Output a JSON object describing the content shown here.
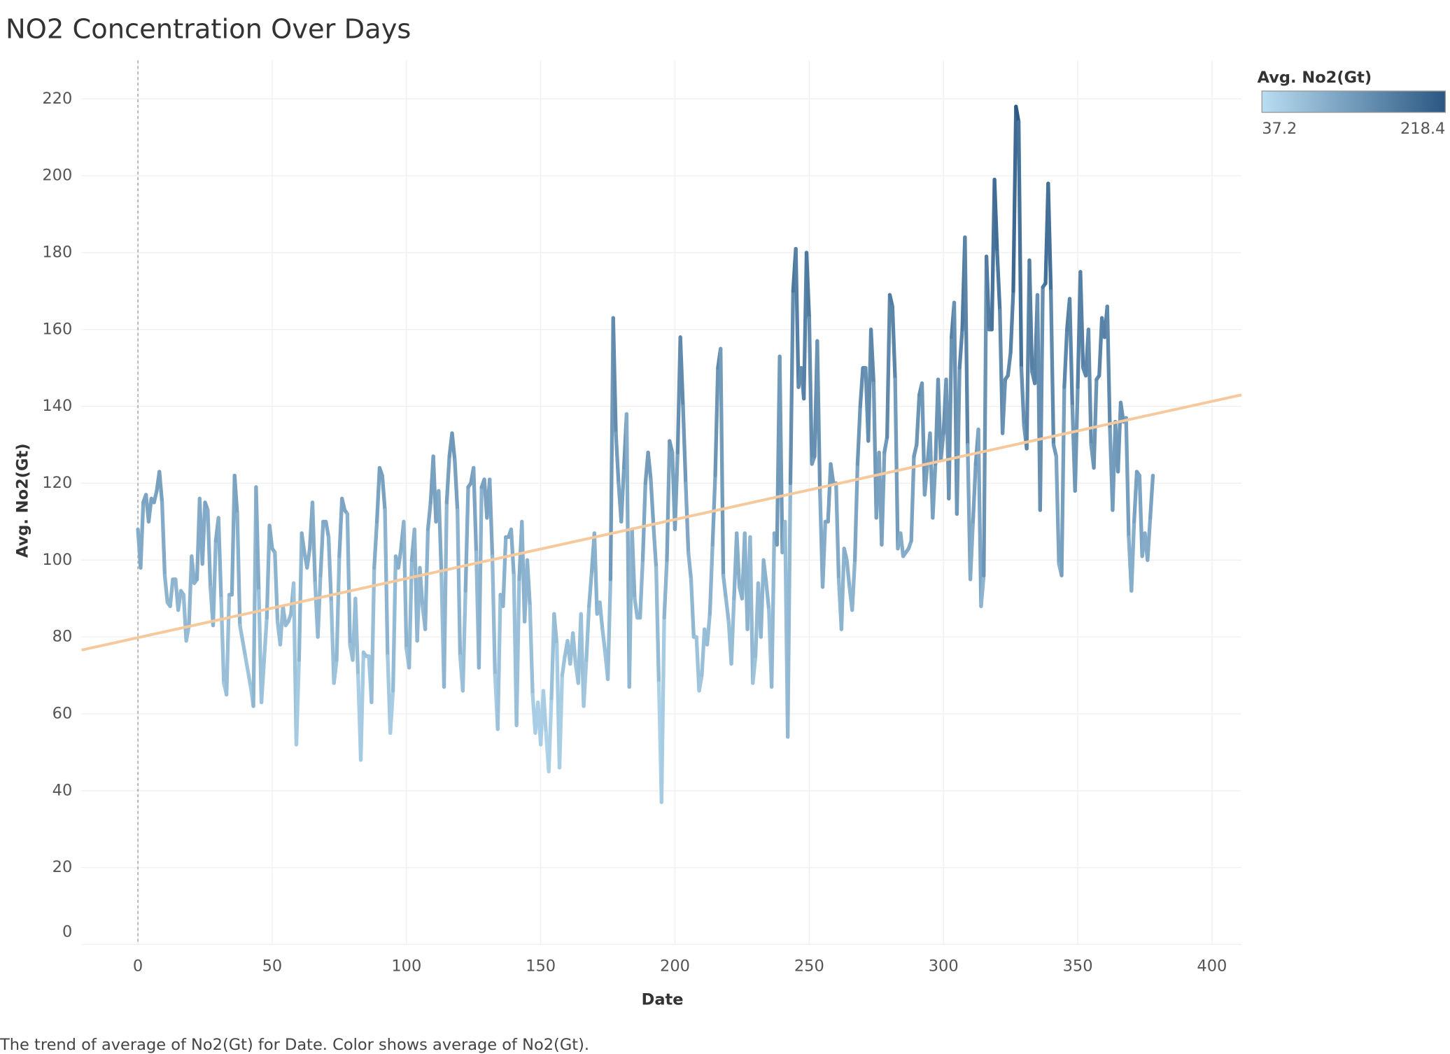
{
  "chart_data": {
    "type": "line",
    "title": "NO2 Concentration Over Days",
    "x_label": "Date",
    "y_label": "Avg. No2(Gt)",
    "caption": "The trend of average of No2(Gt) for Date.  Color shows average of No2(Gt).",
    "xlim": [
      -21,
      411
    ],
    "ylim": [
      0,
      230
    ],
    "xticks": [
      0,
      50,
      100,
      150,
      200,
      250,
      300,
      350,
      400
    ],
    "yticks": [
      0,
      20,
      40,
      60,
      80,
      100,
      120,
      140,
      160,
      180,
      200,
      220
    ],
    "grid": true,
    "color_legend": {
      "title": "Avg. No2(Gt)",
      "min": 37.2,
      "max": 218.4,
      "colors": [
        "#b9ddf1",
        "#2a5783"
      ],
      "position": "top-right"
    },
    "trendline": {
      "x": [
        -21,
        411
      ],
      "values": [
        76.6,
        143.0
      ],
      "color": "#f6c99c"
    },
    "x": [
      0,
      1,
      2,
      3,
      4,
      5,
      6,
      7,
      8,
      9,
      10,
      11,
      12,
      13,
      14,
      15,
      16,
      17,
      18,
      19,
      20,
      21,
      22,
      23,
      24,
      25,
      26,
      27,
      28,
      29,
      30,
      31,
      32,
      33,
      34,
      35,
      36,
      37,
      38,
      40,
      42,
      43,
      44,
      45,
      46,
      48,
      49,
      50,
      51,
      52,
      53,
      54,
      55,
      56,
      57,
      58,
      59,
      60,
      61,
      62,
      63,
      64,
      65,
      66,
      67,
      68,
      69,
      70,
      71,
      72,
      73,
      74,
      75,
      76,
      77,
      78,
      79,
      80,
      81,
      82,
      83,
      84,
      85,
      86,
      87,
      88,
      89,
      90,
      91,
      92,
      93,
      94,
      95,
      96,
      97,
      98,
      99,
      100,
      101,
      102,
      103,
      104,
      105,
      106,
      107,
      108,
      109,
      110,
      111,
      112,
      113,
      114,
      115,
      116,
      117,
      118,
      119,
      120,
      121,
      122,
      123,
      124,
      125,
      126,
      127,
      128,
      129,
      130,
      131,
      132,
      133,
      134,
      135,
      136,
      137,
      138,
      139,
      140,
      141,
      142,
      143,
      144,
      145,
      146,
      147,
      148,
      149,
      150,
      151,
      152,
      153,
      154,
      155,
      156,
      157,
      158,
      159,
      160,
      161,
      162,
      163,
      164,
      165,
      166,
      167,
      168,
      169,
      170,
      171,
      172,
      173,
      174,
      175,
      176,
      177,
      178,
      179,
      180,
      181,
      182,
      183,
      184,
      185,
      186,
      187,
      188,
      189,
      190,
      191,
      192,
      193,
      194,
      195,
      196,
      197,
      198,
      199,
      200,
      201,
      202,
      203,
      204,
      205,
      206,
      207,
      208,
      209,
      210,
      211,
      212,
      213,
      214,
      215,
      216,
      217,
      218,
      219,
      220,
      221,
      222,
      223,
      224,
      225,
      226,
      227,
      228,
      229,
      230,
      231,
      232,
      233,
      234,
      235,
      236,
      237,
      238,
      239,
      240,
      241,
      242,
      243,
      244,
      245,
      246,
      247,
      248,
      249,
      250,
      251,
      252,
      253,
      254,
      255,
      256,
      257,
      258,
      259,
      260,
      261,
      262,
      263,
      264,
      265,
      266,
      267,
      268,
      269,
      270,
      271,
      272,
      273,
      274,
      275,
      276,
      277,
      278,
      279,
      280,
      281,
      282,
      283,
      284,
      285,
      286,
      287,
      288,
      289,
      290,
      291,
      292,
      293,
      294,
      295,
      296,
      297,
      298,
      299,
      300,
      301,
      302,
      303,
      304,
      305,
      306,
      307,
      308,
      309,
      310,
      311,
      312,
      313,
      314,
      315,
      316,
      317,
      318,
      319,
      320,
      321,
      322,
      323,
      324,
      325,
      326,
      327,
      328,
      329,
      330,
      331,
      332,
      333,
      334,
      335,
      336,
      337,
      338,
      339,
      340,
      341,
      342,
      343,
      344,
      345,
      346,
      347,
      348,
      349,
      350,
      351,
      352,
      353,
      354,
      355,
      356,
      357,
      358,
      359,
      360,
      361,
      362,
      363,
      364,
      365,
      366,
      367,
      368,
      369,
      370,
      371,
      372,
      373,
      374,
      375,
      376,
      377,
      378
    ],
    "values": [
      108,
      98,
      115,
      117,
      110,
      116,
      115,
      118,
      123,
      115,
      96,
      89,
      88,
      95,
      95,
      87,
      92,
      91,
      79,
      83,
      101,
      94,
      95,
      116,
      99,
      115,
      113,
      93,
      83,
      105,
      111,
      90,
      68,
      65,
      91,
      91,
      122,
      112,
      83,
      75,
      67,
      62,
      119,
      92,
      63,
      85,
      109,
      103,
      102,
      84,
      78,
      88,
      83,
      84,
      86,
      94,
      52,
      74,
      107,
      102,
      98,
      103,
      115,
      94,
      80,
      96,
      110,
      110,
      106,
      89,
      68,
      74,
      101,
      116,
      113,
      112,
      78,
      74,
      90,
      70,
      48,
      76,
      75,
      75,
      63,
      98,
      110,
      124,
      122,
      113,
      75,
      55,
      66,
      101,
      98,
      103,
      110,
      77,
      72,
      100,
      108,
      79,
      98,
      88,
      82,
      108,
      115,
      127,
      110,
      118,
      97,
      67,
      115,
      127,
      133,
      126,
      113,
      75,
      66,
      92,
      119,
      120,
      124,
      102,
      72,
      119,
      121,
      111,
      121,
      101,
      70,
      56,
      91,
      88,
      106,
      106,
      108,
      96,
      57,
      95,
      110,
      84,
      100,
      88,
      65,
      55,
      63,
      52,
      66,
      55,
      45,
      64,
      86,
      78,
      46,
      70,
      75,
      79,
      73,
      81,
      73,
      68,
      86,
      62,
      74,
      88,
      97,
      107,
      86,
      89,
      82,
      76,
      69,
      95,
      163,
      133,
      120,
      110,
      124,
      138,
      67,
      108,
      90,
      85,
      85,
      100,
      120,
      128,
      121,
      109,
      98,
      68,
      37,
      85,
      100,
      131,
      128,
      108,
      128,
      158,
      140,
      120,
      102,
      95,
      80,
      80,
      66,
      70,
      82,
      78,
      86,
      104,
      122,
      150,
      155,
      96,
      90,
      84,
      73,
      90,
      107,
      93,
      90,
      107,
      82,
      106,
      68,
      75,
      94,
      80,
      100,
      94,
      87,
      67,
      107,
      104,
      153,
      102,
      110,
      54,
      120,
      170,
      181,
      145,
      150,
      142,
      180,
      163,
      125,
      127,
      157,
      118,
      93,
      110,
      110,
      125,
      120,
      120,
      95,
      82,
      103,
      100,
      93,
      87,
      100,
      125,
      140,
      150,
      150,
      131,
      160,
      146,
      111,
      128,
      104,
      128,
      132,
      169,
      166,
      147,
      103,
      107,
      101,
      102,
      103,
      105,
      127,
      130,
      143,
      146,
      117,
      125,
      133,
      111,
      125,
      147,
      126,
      133,
      147,
      116,
      158,
      167,
      112,
      150,
      160,
      184,
      130,
      95,
      110,
      125,
      134,
      88,
      96,
      179,
      160,
      160,
      199,
      180,
      165,
      133,
      147,
      148,
      154,
      170,
      218,
      214,
      150,
      135,
      129,
      178,
      149,
      146,
      169,
      113,
      171,
      172,
      198,
      170,
      130,
      127,
      99,
      96,
      145,
      160,
      168,
      140,
      118,
      145,
      175,
      150,
      148,
      160,
      130,
      124,
      147,
      148,
      163,
      158,
      166,
      134,
      113,
      136,
      123,
      141,
      136,
      137,
      106,
      92,
      110,
      123,
      122,
      101,
      107,
      100,
      111,
      122
    ]
  }
}
